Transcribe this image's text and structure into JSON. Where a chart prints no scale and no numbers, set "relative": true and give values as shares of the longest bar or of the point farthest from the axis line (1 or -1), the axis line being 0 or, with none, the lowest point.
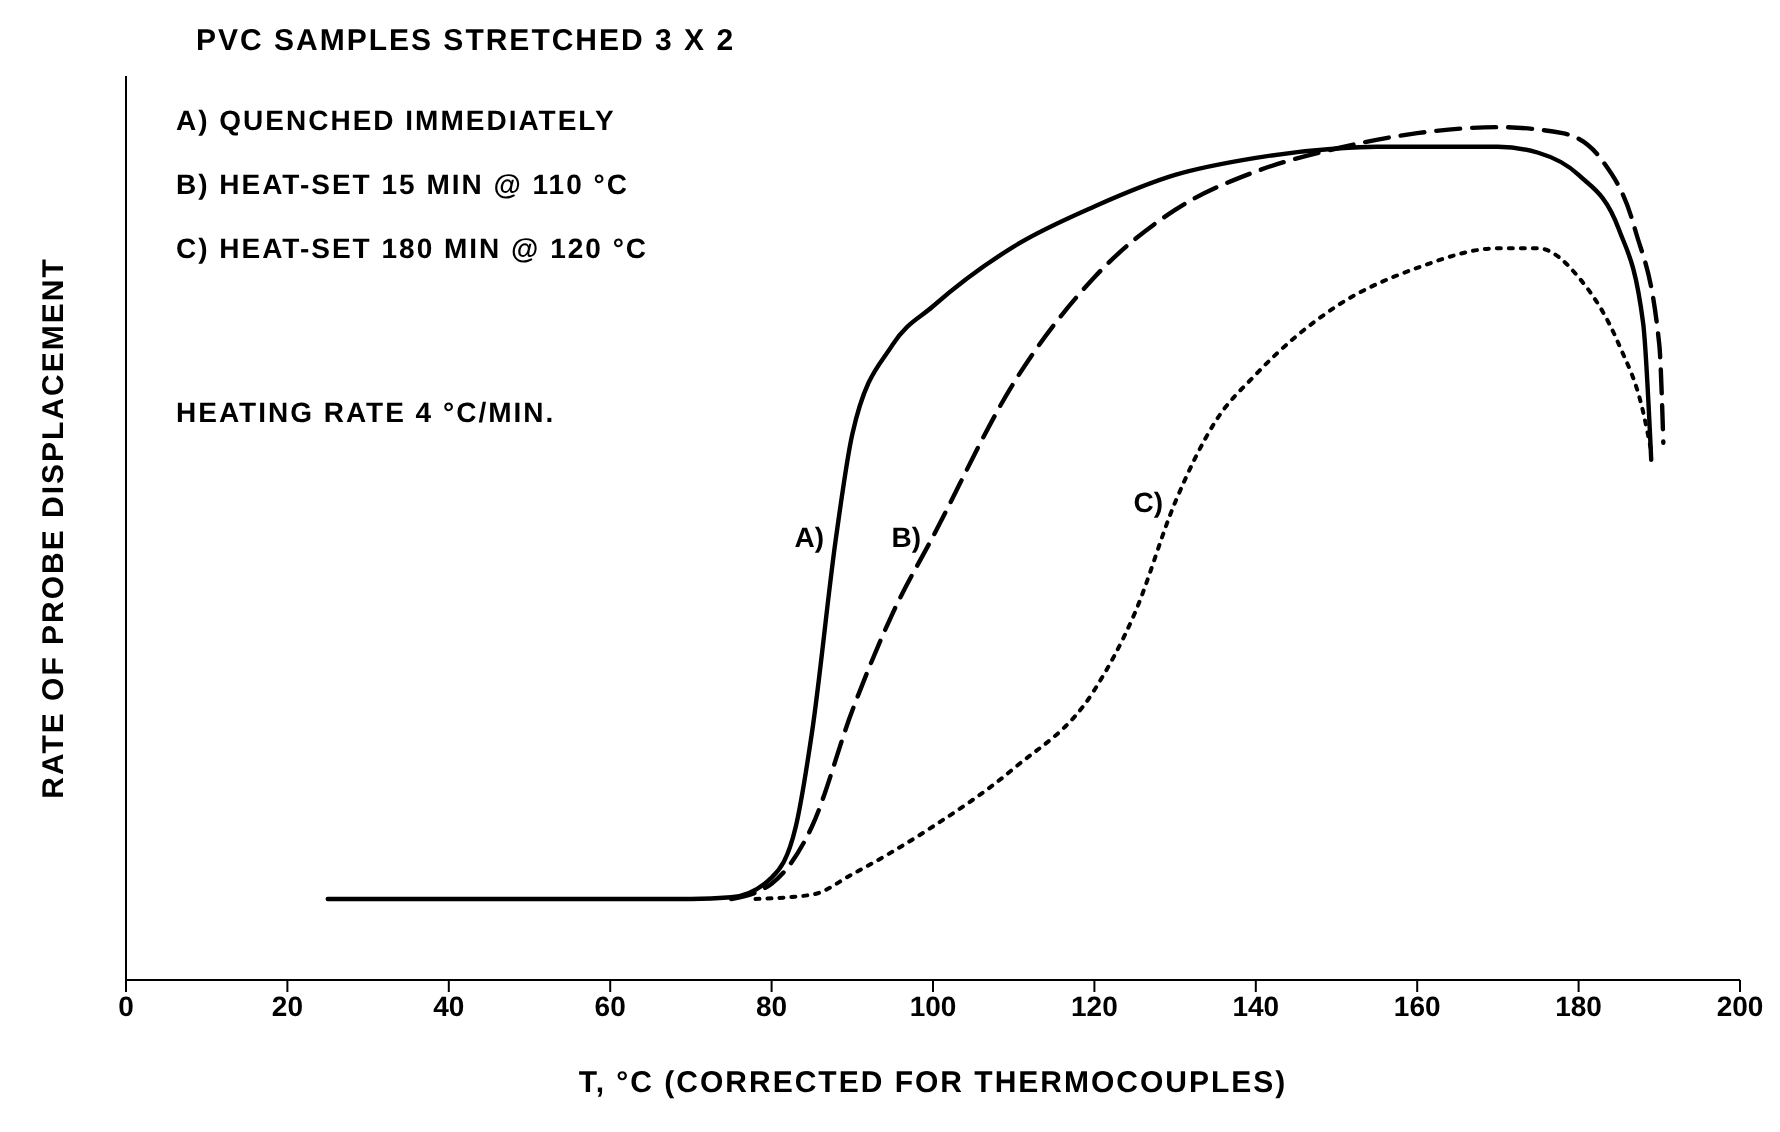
{
  "chart_data": {
    "type": "line",
    "title": "PVC SAMPLES STRETCHED 3 X 2",
    "xlabel": "T, °C (CORRECTED FOR THERMOCOUPLES)",
    "ylabel": "RATE OF PROBE DISPLACEMENT",
    "annotations": [
      "A) QUENCHED IMMEDIATELY",
      "B) HEAT-SET 15 MIN @ 110 °C",
      "C) HEAT-SET 180 MIN @ 120 °C",
      "HEATING RATE 4 °C/MIN."
    ],
    "relative": true,
    "xlim": [
      0,
      200
    ],
    "xticks": [
      0,
      20,
      40,
      60,
      80,
      100,
      120,
      140,
      160,
      180,
      200
    ],
    "grid": false,
    "legend": false,
    "marker": "none",
    "series": [
      {
        "name": "A)",
        "color": "#000000",
        "line_style": "solid",
        "x": [
          25,
          70,
          75,
          80,
          83,
          85,
          88,
          90,
          95,
          100,
          110,
          120,
          130,
          140,
          150,
          155,
          170,
          175,
          180,
          185,
          188,
          189
        ],
        "values": [
          0.095,
          0.095,
          0.097,
          0.12,
          0.18,
          0.29,
          0.52,
          0.64,
          0.745,
          0.79,
          0.86,
          0.907,
          0.944,
          0.964,
          0.975,
          0.977,
          0.977,
          0.97,
          0.944,
          0.88,
          0.77,
          0.61
        ]
      },
      {
        "name": "B)",
        "color": "#000000",
        "line_style": "dashed",
        "x": [
          75,
          80,
          85,
          90,
          95,
          100,
          110,
          120,
          130,
          140,
          150,
          160,
          170,
          178,
          183,
          187,
          190,
          190.5
        ],
        "values": [
          0.095,
          0.113,
          0.18,
          0.316,
          0.43,
          0.52,
          0.7,
          0.824,
          0.903,
          0.948,
          0.975,
          0.993,
          1,
          0.993,
          0.96,
          0.88,
          0.745,
          0.63
        ]
      },
      {
        "name": "C)",
        "color": "#000000",
        "line_style": "dotted",
        "x": [
          78,
          85,
          90,
          100,
          110,
          120,
          125,
          130,
          135,
          140,
          150,
          160,
          170,
          175,
          180,
          185,
          188,
          189
        ],
        "values": [
          0.095,
          0.1,
          0.124,
          0.18,
          0.248,
          0.34,
          0.43,
          0.56,
          0.655,
          0.71,
          0.79,
          0.835,
          0.858,
          0.858,
          0.824,
          0.745,
          0.666,
          0.62
        ]
      }
    ]
  }
}
